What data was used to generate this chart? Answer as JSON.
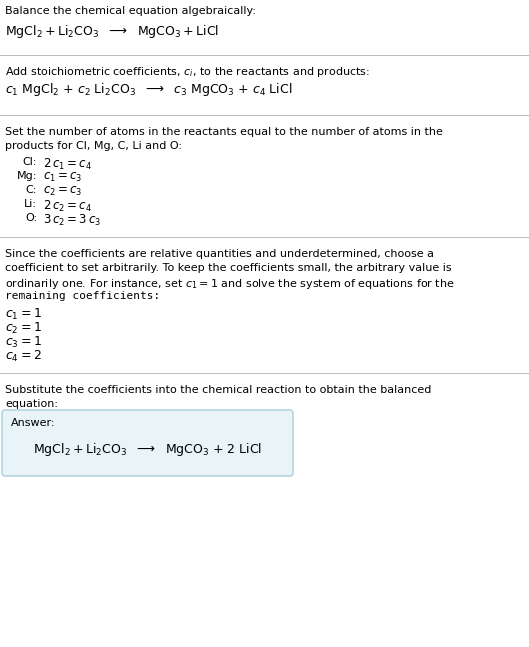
{
  "title_line1": "Balance the chemical equation algebraically:",
  "section2_label": "Add stoichiometric coefficients, $c_i$, to the reactants and products:",
  "section3_intro1": "Set the number of atoms in the reactants equal to the number of atoms in the",
  "section3_intro2": "products for Cl, Mg, C, Li and O:",
  "section4_intro1": "Since the coefficients are relative quantities and underdetermined, choose a",
  "section4_intro2": "coefficient to set arbitrarily. To keep the coefficients small, the arbitrary value is",
  "section4_intro3": "ordinarily one. For instance, set $c_1 = 1$ and solve the system of equations for the",
  "section4_intro4": "remaining coefficients:",
  "section5_intro1": "Substitute the coefficients into the chemical reaction to obtain the balanced",
  "section5_intro2": "equation:",
  "answer_label": "Answer:",
  "bg_color": "#ffffff",
  "answer_box_facecolor": "#e8f4f8",
  "answer_box_edgecolor": "#aacfdf",
  "text_color": "#000000",
  "separator_color": "#bbbbbb",
  "fs_body": 8.0,
  "fs_formula": 9.0,
  "fs_eq": 8.5
}
